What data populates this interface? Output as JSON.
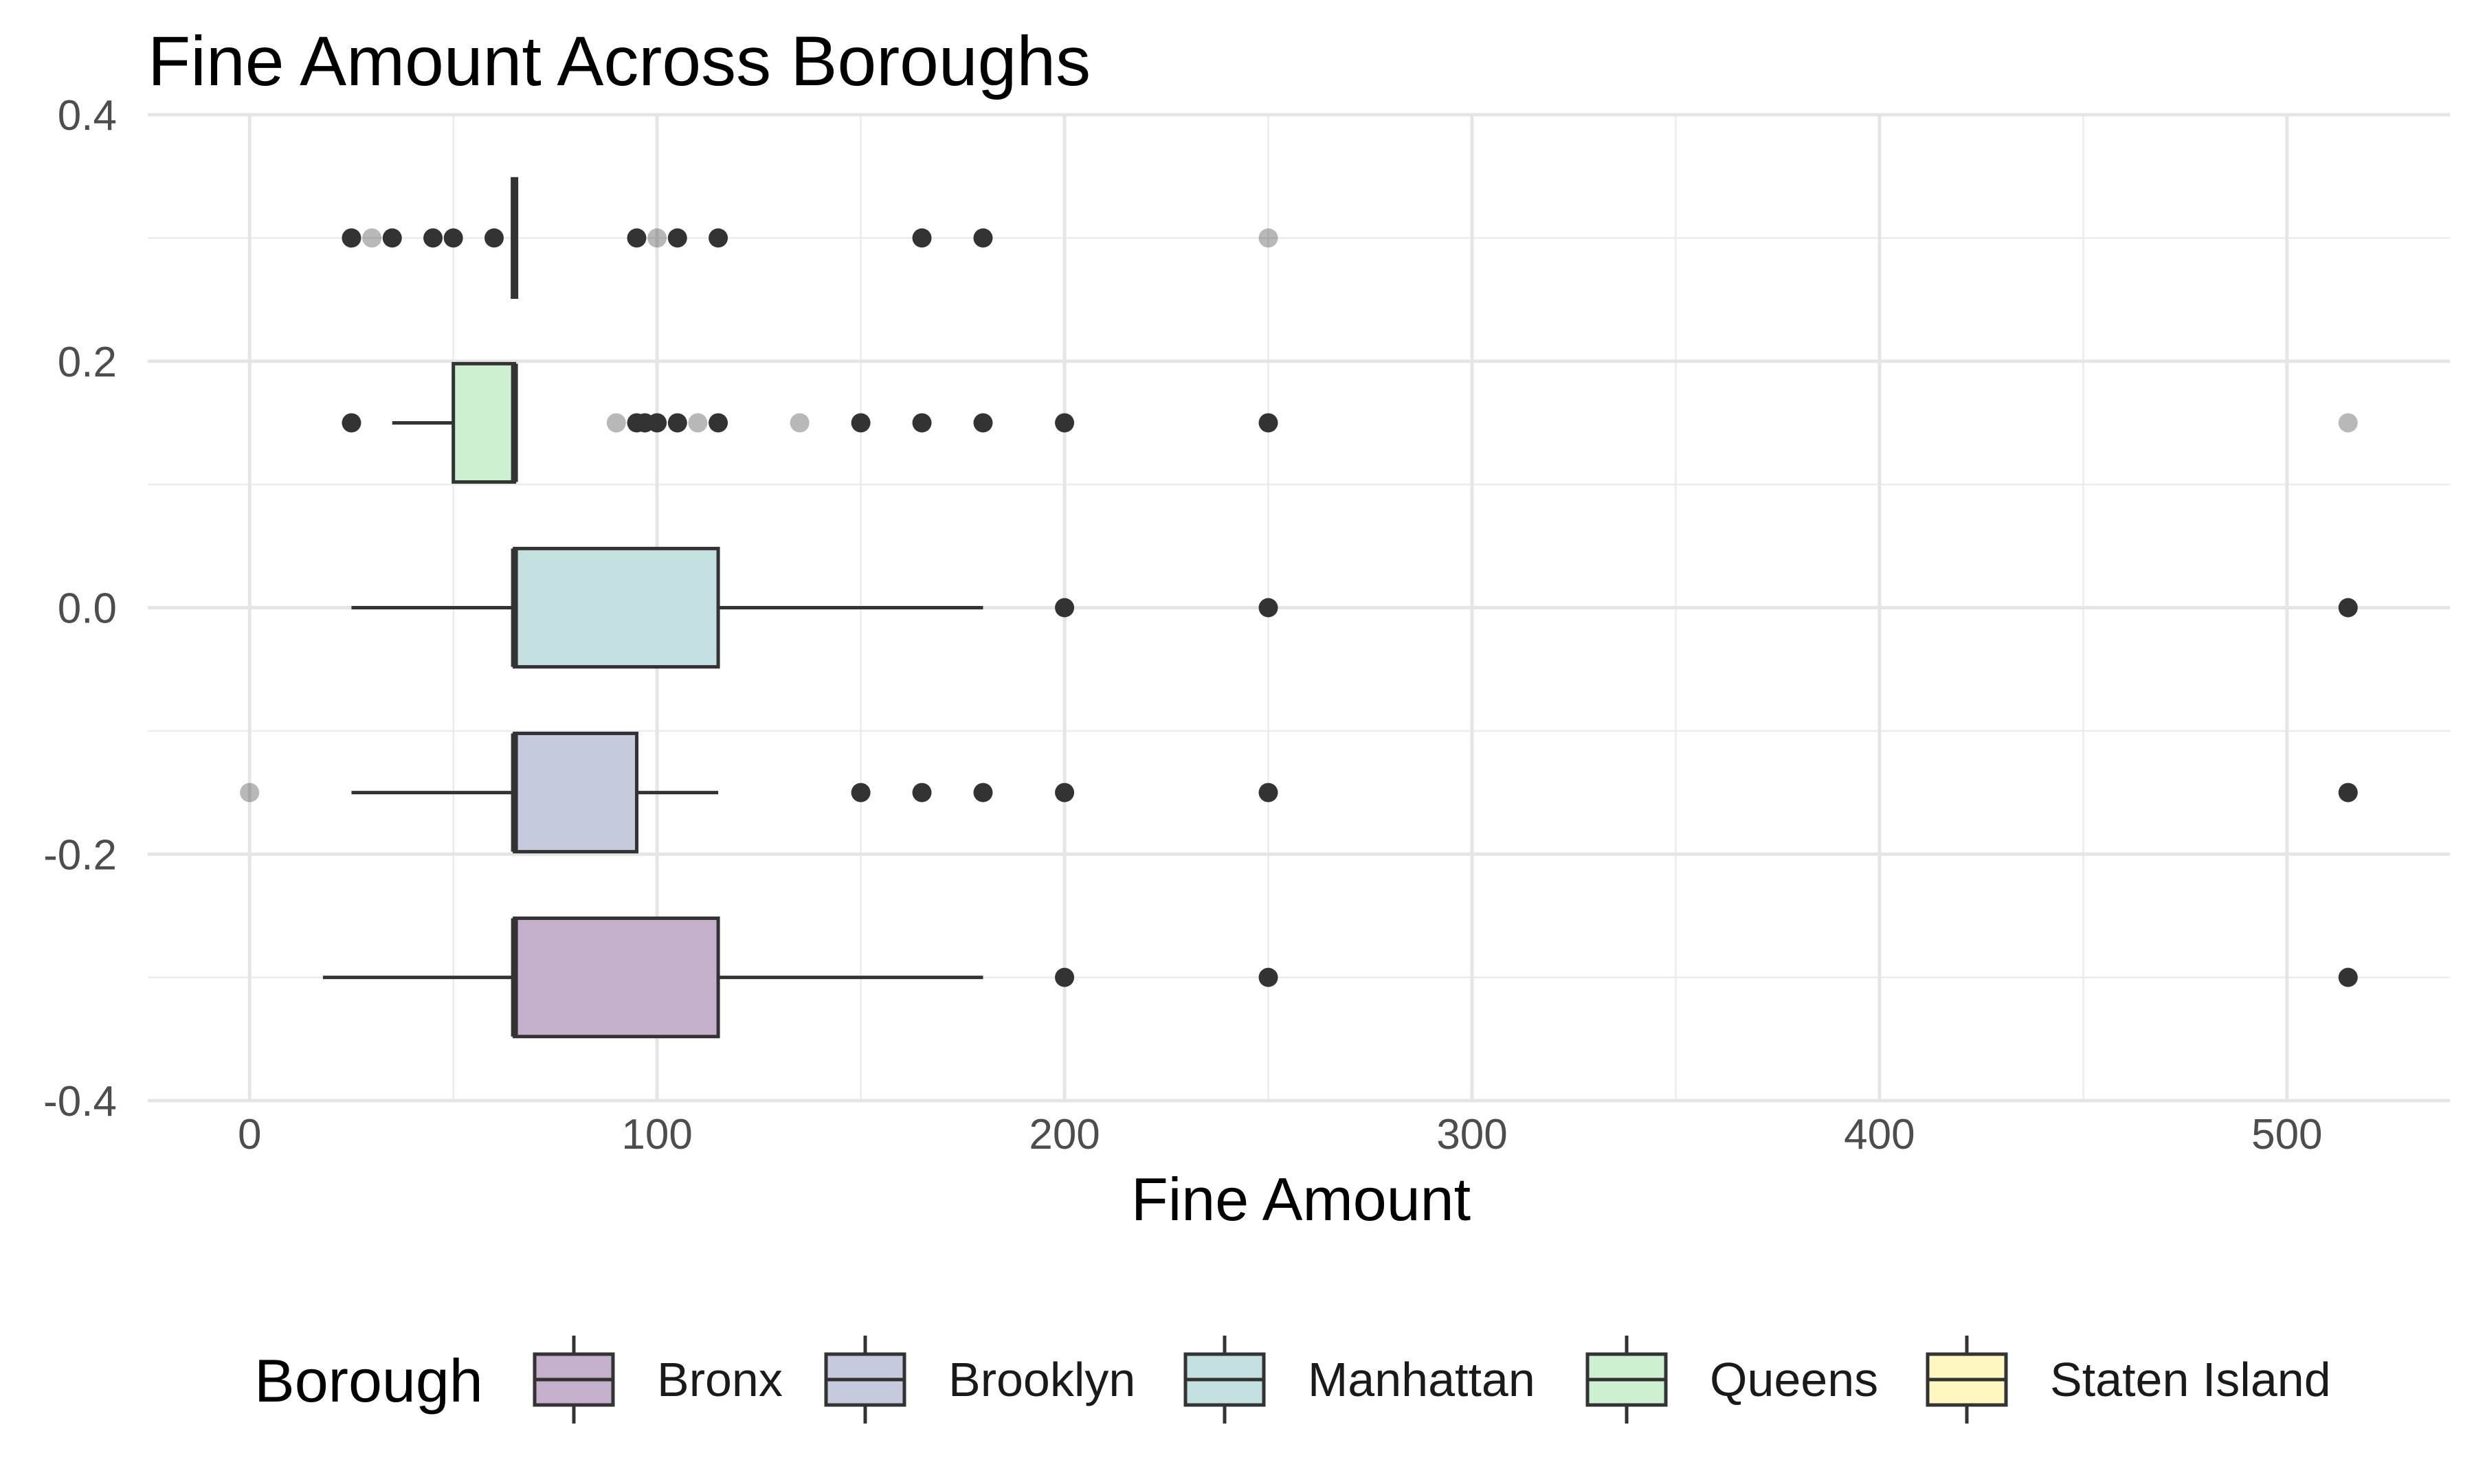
{
  "chart_data": {
    "type": "boxplot",
    "title": "Fine Amount Across Boroughs",
    "xlabel": "Fine Amount",
    "ylabel": "",
    "xlim": [
      -25,
      540
    ],
    "ylim": [
      -0.4,
      0.4
    ],
    "x_ticks": [
      0,
      100,
      200,
      300,
      400,
      500
    ],
    "y_ticks": [
      0.4,
      0.2,
      0.0,
      -0.2,
      -0.4
    ],
    "y_tick_labels": [
      "0.4",
      "0.2",
      "0.0",
      "-0.2",
      "-0.4"
    ],
    "grid": true,
    "legend": {
      "title": "Borough",
      "position": "bottom",
      "entries": [
        "Bronx",
        "Brooklyn",
        "Manhattan",
        "Queens",
        "Staten Island"
      ]
    },
    "series": [
      {
        "name": "Bronx",
        "color": "#C5B0CB",
        "y": -0.3,
        "q1": 65,
        "median": 65,
        "q3": 115,
        "whisker_low": 18,
        "whisker_high": 180,
        "outliers": [
          200,
          250,
          515
        ],
        "faint_outliers": [
          515
        ]
      },
      {
        "name": "Brooklyn",
        "color": "#C6CADD",
        "y": -0.15,
        "q1": 65,
        "median": 65,
        "q3": 95,
        "whisker_low": 25,
        "whisker_high": 115,
        "outliers": [
          150,
          165,
          180,
          200,
          250,
          515
        ],
        "faint_outliers": [
          0,
          515
        ]
      },
      {
        "name": "Manhattan",
        "color": "#C3DFDF",
        "y": 0.0,
        "q1": 65,
        "median": 65,
        "q3": 115,
        "whisker_low": 25,
        "whisker_high": 180,
        "outliers": [
          200,
          250,
          515
        ],
        "faint_outliers": [
          515
        ]
      },
      {
        "name": "Queens",
        "color": "#CDEFD2",
        "y": 0.15,
        "q1": 50,
        "median": 65,
        "q3": 65,
        "whisker_low": 35,
        "whisker_high": 65,
        "outliers": [
          25,
          95,
          97,
          100,
          105,
          115,
          150,
          165,
          180,
          200,
          250
        ],
        "faint_outliers": [
          90,
          110,
          135,
          515
        ]
      },
      {
        "name": "Staten Island",
        "color": "#FFF7BF",
        "y": 0.3,
        "q1": 65,
        "median": 65,
        "q3": 65,
        "whisker_low": 65,
        "whisker_high": 65,
        "outliers": [
          25,
          35,
          45,
          50,
          60,
          95,
          105,
          115,
          165,
          180
        ],
        "faint_outliers": [
          25,
          30,
          100,
          250
        ]
      }
    ]
  }
}
